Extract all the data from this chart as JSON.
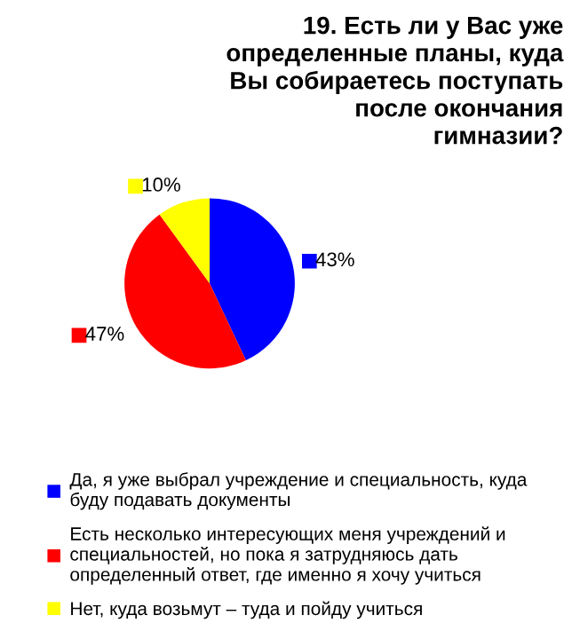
{
  "chart_data": {
    "type": "pie",
    "title": "19. Есть ли у Вас уже определенные планы, куда Вы собираетесь поступать после окончания гимназии?",
    "categories": [
      "Да, я уже выбрал учреждение и специальность, куда буду подавать документы",
      "Есть несколько интересующих меня учреждений и специальностей, но пока я затрудняюсь дать определенный ответ, где именно я хочу учиться",
      "Нет, куда возьмут – туда и пойду учиться"
    ],
    "values": [
      43,
      47,
      10
    ],
    "value_labels": [
      "43%",
      "47%",
      "10%"
    ],
    "colors": [
      "#0000ff",
      "#ff0000",
      "#ffff00"
    ],
    "legend": "bottom"
  }
}
